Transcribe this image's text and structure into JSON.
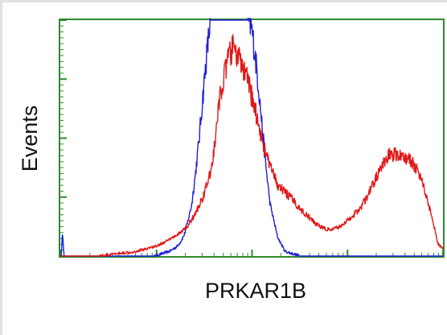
{
  "chart_data": {
    "type": "line",
    "title": "",
    "xlabel": "PRKAR1B",
    "ylabel": "Events",
    "xlim": [
      0,
      1023
    ],
    "ylim": [
      0,
      100
    ],
    "grid": false,
    "legend": "none",
    "colors": {
      "axis": "#2e8b2e",
      "blue": "#1f1fd8",
      "red": "#e01a1a"
    },
    "series": [
      {
        "color": "#1f1fd8",
        "x": [
          0,
          4,
          8,
          20,
          60,
          100,
          140,
          180,
          220,
          250,
          270,
          290,
          310,
          320,
          330,
          340,
          350,
          360,
          370,
          380,
          390,
          400,
          410,
          420,
          430,
          440,
          450,
          460,
          470,
          480,
          490,
          500,
          510,
          520,
          530,
          540,
          550,
          560,
          580,
          600,
          620,
          640,
          660,
          700,
          760,
          820,
          880,
          940,
          1000,
          1023
        ],
        "y": [
          0,
          10,
          0,
          0,
          0,
          0,
          0,
          0,
          0,
          0,
          1,
          2,
          4,
          6,
          9,
          15,
          22,
          35,
          50,
          68,
          85,
          100,
          100,
          100,
          100,
          100,
          100,
          100,
          100,
          100,
          100,
          100,
          97,
          85,
          70,
          52,
          36,
          22,
          8,
          2,
          1,
          0,
          0,
          0,
          0,
          0,
          0,
          0,
          0,
          0
        ]
      },
      {
        "color": "#e01a1a",
        "x": [
          0,
          100,
          150,
          200,
          250,
          280,
          300,
          320,
          340,
          360,
          380,
          400,
          410,
          420,
          430,
          440,
          450,
          460,
          470,
          480,
          490,
          500,
          520,
          540,
          560,
          580,
          600,
          620,
          640,
          660,
          680,
          700,
          720,
          740,
          760,
          780,
          800,
          820,
          840,
          860,
          880,
          900,
          920,
          940,
          960,
          980,
          1000,
          1010,
          1023
        ],
        "y": [
          0,
          0,
          1,
          2,
          4,
          6,
          8,
          10,
          13,
          18,
          25,
          35,
          45,
          60,
          72,
          78,
          85,
          88,
          86,
          82,
          78,
          74,
          62,
          48,
          38,
          30,
          27,
          24,
          20,
          17,
          14,
          12,
          11,
          12,
          14,
          17,
          20,
          25,
          32,
          38,
          43,
          43,
          42,
          40,
          35,
          25,
          12,
          5,
          3
        ]
      }
    ]
  }
}
